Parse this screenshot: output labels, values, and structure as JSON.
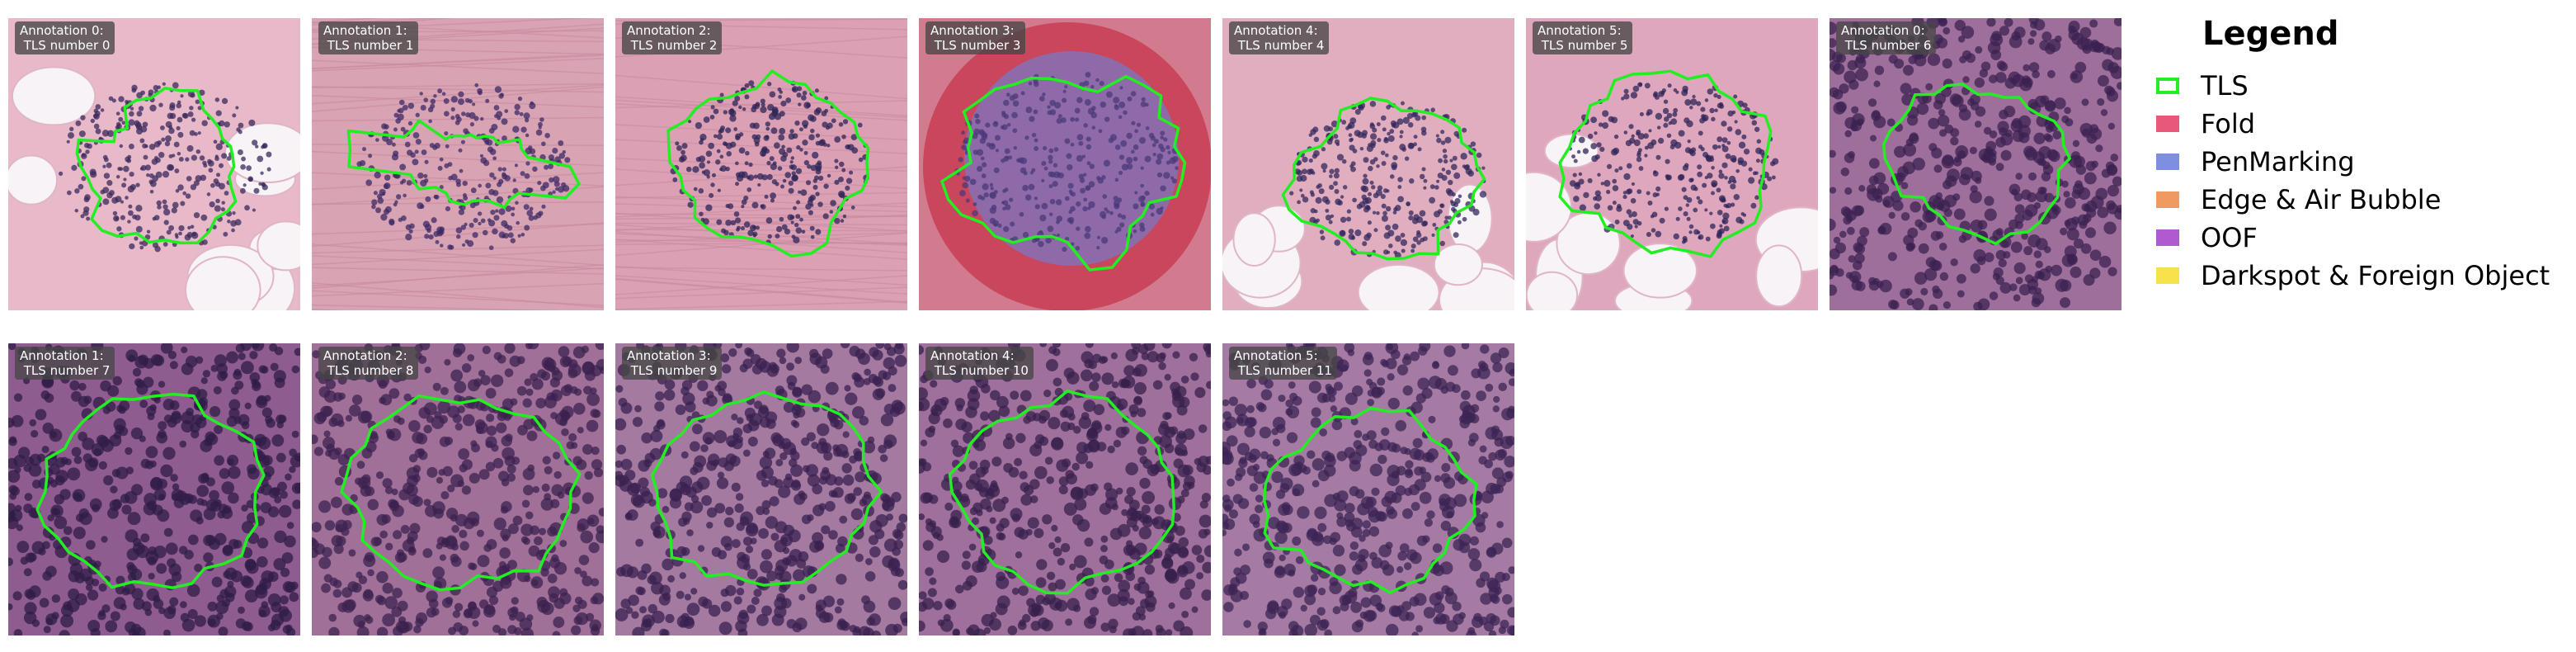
{
  "tiles": [
    {
      "label": "Annotation 0:\n TLS number 0",
      "tissue": "fat",
      "bg": "#e8b9c9",
      "dots": "#3a2a5c"
    },
    {
      "label": "Annotation 1:\n TLS number 1",
      "tissue": "stroma",
      "bg": "#d8a3b2",
      "dots": "#3d2a66"
    },
    {
      "label": "Annotation 2:\n TLS number 2",
      "tissue": "stroma",
      "bg": "#dca0b4",
      "dots": "#2e2458"
    },
    {
      "label": "Annotation 3:\n TLS number 3",
      "tissue": "red",
      "bg": "#d27a8e",
      "dots": "#4a3a7a"
    },
    {
      "label": "Annotation 4:\n TLS number 4",
      "tissue": "fat",
      "bg": "#e1aec0",
      "dots": "#33285e"
    },
    {
      "label": "Annotation 5:\n TLS number 5",
      "tissue": "fat",
      "bg": "#dfa7bd",
      "dots": "#2f2458"
    },
    {
      "label": "Annotation 0:\n TLS number 6",
      "tissue": "dense",
      "bg": "#9f6f9c",
      "dots": "#3b2252"
    },
    {
      "label": "Annotation 1:\n TLS number 7",
      "tissue": "dense",
      "bg": "#8e5c8e",
      "dots": "#2f1c48"
    },
    {
      "label": "Annotation 2:\n TLS number 8",
      "tissue": "dense",
      "bg": "#a07098",
      "dots": "#3c2150"
    },
    {
      "label": "Annotation 3:\n TLS number 9",
      "tissue": "dense",
      "bg": "#a57aa0",
      "dots": "#3a2250"
    },
    {
      "label": "Annotation 4:\n TLS number 10",
      "tissue": "dense",
      "bg": "#9f709c",
      "dots": "#38204e"
    },
    {
      "label": "Annotation 5:\n TLS number 11",
      "tissue": "dense",
      "bg": "#a57ba4",
      "dots": "#3c2454"
    }
  ],
  "legend": {
    "title": "Legend",
    "items": [
      {
        "label": "TLS",
        "color": "#22ee22",
        "kind": "outline"
      },
      {
        "label": "Fold",
        "color": "#e8587a",
        "kind": "fill"
      },
      {
        "label": "PenMarking",
        "color": "#7e8fe0",
        "kind": "fill"
      },
      {
        "label": "Edge & Air Bubble",
        "color": "#ef9a60",
        "kind": "fill"
      },
      {
        "label": "OOF",
        "color": "#b05ad0",
        "kind": "fill"
      },
      {
        "label": "Darkspot & Foreign Object",
        "color": "#f6e24a",
        "kind": "fill"
      }
    ]
  }
}
